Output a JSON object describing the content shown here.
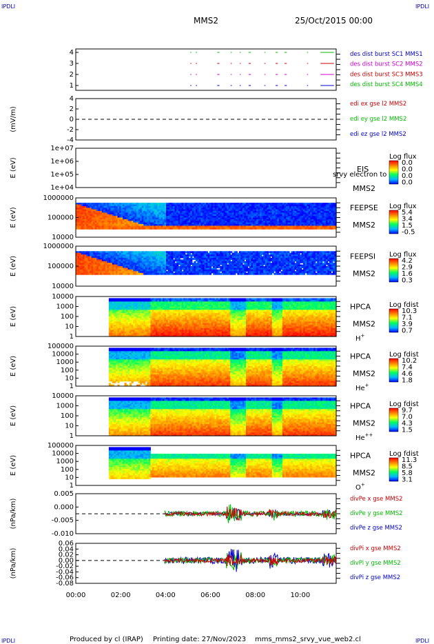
{
  "header": {
    "corner_tl": "IPDLI",
    "corner_tr": "IPDLI",
    "corner_bl": "IPDLI",
    "corner_br": "IPDLI",
    "title": "MMS2",
    "date": "25/Oct/2015 00:00"
  },
  "footer": {
    "produced": "Produced by cl (IRAP)",
    "printing": "Printing date: 27/Nov/2023",
    "script": "mms_mms2_srvy_vue_web2.cl"
  },
  "x_axis": {
    "tick_labels": [
      "00:00",
      "02:00",
      "04:00",
      "06:00",
      "08:00",
      "10:00"
    ]
  },
  "chart_data": [
    {
      "type": "line",
      "panel": "burst",
      "ylim": [
        0.6,
        4.4
      ],
      "tick_labels": [
        "4",
        "3",
        "2",
        "1"
      ],
      "legend": [
        {
          "text": "des dist burst SC1 MMS1",
          "color": "#0000cc"
        },
        {
          "text": "des dist burst SC2 MMS2",
          "color": "#cc00cc"
        },
        {
          "text": "des dist burst SC3 MMS3",
          "color": "#cc0000"
        },
        {
          "text": "des dist burst SC4 MMS4",
          "color": "#00bb00"
        }
      ]
    },
    {
      "type": "line",
      "panel": "edi",
      "ylabel": "(mV/m)",
      "ylim": [
        -4,
        4
      ],
      "tick_labels": [
        "4",
        "2",
        "0",
        "-2",
        "-4"
      ],
      "legend": [
        {
          "text": "edi ex gse l2 MMS2",
          "color": "#cc0000"
        },
        {
          "text": "edi ey gse l2 MMS2",
          "color": "#00bb00"
        },
        {
          "text": "edi ez gse l2 MMS2",
          "color": "#0000cc"
        }
      ]
    },
    {
      "type": "heatmap",
      "panel": "eis",
      "ylabel": "E (eV)",
      "tick_labels": [
        "1e+07",
        "1e+06",
        "1e+05",
        "1e+04"
      ],
      "label1": "EIS",
      "label2": "MMS2",
      "overlay": "srvy electron to",
      "cb_title": "Log flux",
      "cb_ticks": [
        "0.0",
        "0.0",
        "0.0",
        "0.0"
      ]
    },
    {
      "type": "heatmap",
      "panel": "feepse",
      "ylabel": "E (eV)",
      "tick_labels": [
        "1000000",
        "100000",
        "10000"
      ],
      "label1": "FEEPSE",
      "label2": "MMS2",
      "cb_title": "Log flux",
      "cb_ticks": [
        "5.4",
        "3.4",
        "1.5",
        "-0.5"
      ]
    },
    {
      "type": "heatmap",
      "panel": "feepsi",
      "ylabel": "E (eV)",
      "tick_labels": [
        "1000000",
        "100000",
        "10000"
      ],
      "label1": "FEEPSI",
      "label2": "MMS2",
      "cb_title": "Log flux",
      "cb_ticks": [
        "4.2",
        "2.9",
        "1.6",
        "0.3"
      ]
    },
    {
      "type": "heatmap",
      "panel": "hpca_h",
      "ylabel": "E (eV)",
      "tick_labels": [
        "10000",
        "1000",
        "100",
        "10",
        "1"
      ],
      "label1": "HPCA",
      "label2": "MMS2",
      "species": "H",
      "species_sup": "+",
      "cb_title": "Log fdist",
      "cb_ticks": [
        "10.3",
        "7.1",
        "3.9",
        "0.7"
      ]
    },
    {
      "type": "heatmap",
      "panel": "hpca_he",
      "ylabel": "E (eV)",
      "tick_labels": [
        "100000",
        "10000",
        "1000",
        "100",
        "10",
        "1"
      ],
      "label1": "HPCA",
      "label2": "MMS2",
      "species": "He",
      "species_sup": "+",
      "cb_title": "Log fdist",
      "cb_ticks": [
        "10.2",
        "7.4",
        "4.6",
        "1.8"
      ]
    },
    {
      "type": "heatmap",
      "panel": "hpca_hepp",
      "ylabel": "E (eV)",
      "tick_labels": [
        "10000",
        "1000",
        "100",
        "10",
        "1"
      ],
      "label1": "HPCA",
      "label2": "MMS2",
      "species": "He",
      "species_sup": "++",
      "cb_title": "Log fdist",
      "cb_ticks": [
        "9.7",
        "7.0",
        "4.3",
        "1.5"
      ]
    },
    {
      "type": "heatmap",
      "panel": "hpca_o",
      "ylabel": "E (eV)",
      "tick_labels": [
        "100000",
        "10000",
        "1000",
        "100",
        "10",
        "1"
      ],
      "label1": "HPCA",
      "label2": "MMS2",
      "species": "O",
      "species_sup": "+",
      "cb_title": "Log fdist",
      "cb_ticks": [
        "11.3",
        "8.5",
        "5.8",
        "3.1"
      ]
    },
    {
      "type": "line",
      "panel": "divpe",
      "ylabel": "(nPa/km)",
      "ylim": [
        -0.01,
        0.01
      ],
      "tick_labels": [
        "0.005",
        "0.000",
        "-0.005",
        "-0.010"
      ],
      "legend": [
        {
          "text": "divPe x gse MMS2",
          "color": "#cc0000"
        },
        {
          "text": "divPe y gse MMS2",
          "color": "#00bb00"
        },
        {
          "text": "divPe z gse MMS2",
          "color": "#0000cc"
        }
      ]
    },
    {
      "type": "line",
      "panel": "divpi",
      "ylabel": "(nPa/km)",
      "ylim": [
        -0.08,
        0.06
      ],
      "tick_labels": [
        "0.06",
        "0.04",
        "0.02",
        "0.00",
        "-0.02",
        "-0.04",
        "-0.06",
        "-0.08"
      ],
      "legend": [
        {
          "text": "divPi x gse MMS2",
          "color": "#cc0000"
        },
        {
          "text": "divPi y gse MMS2",
          "color": "#00bb00"
        },
        {
          "text": "divPi z gse MMS2",
          "color": "#0000cc"
        }
      ]
    }
  ]
}
